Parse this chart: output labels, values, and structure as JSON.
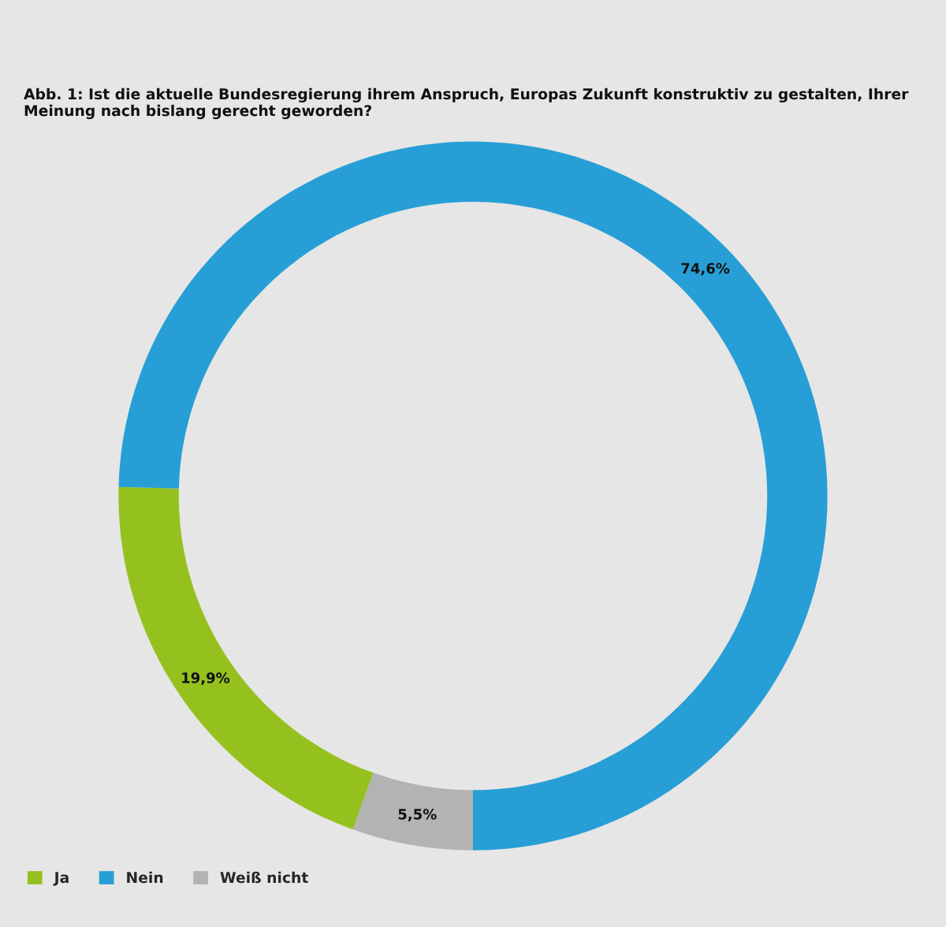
{
  "chart_data": {
    "type": "donut",
    "title": "Abb. 1: Ist die aktuelle Bundesregierung ihrem Anspruch, Europas Zukunft konstruktiv zu gestalten, Ihrer Meinung nach bislang gerecht geworden?",
    "categories": [
      "Ja",
      "Nein",
      "Weiß nicht"
    ],
    "values": [
      19.9,
      74.6,
      5.5
    ],
    "colors": [
      "#95c11f",
      "#279fd6",
      "#b3b3b3"
    ],
    "value_labels": [
      "19,9%",
      "74,6%",
      "5,5%"
    ],
    "legend": "bottom left"
  }
}
